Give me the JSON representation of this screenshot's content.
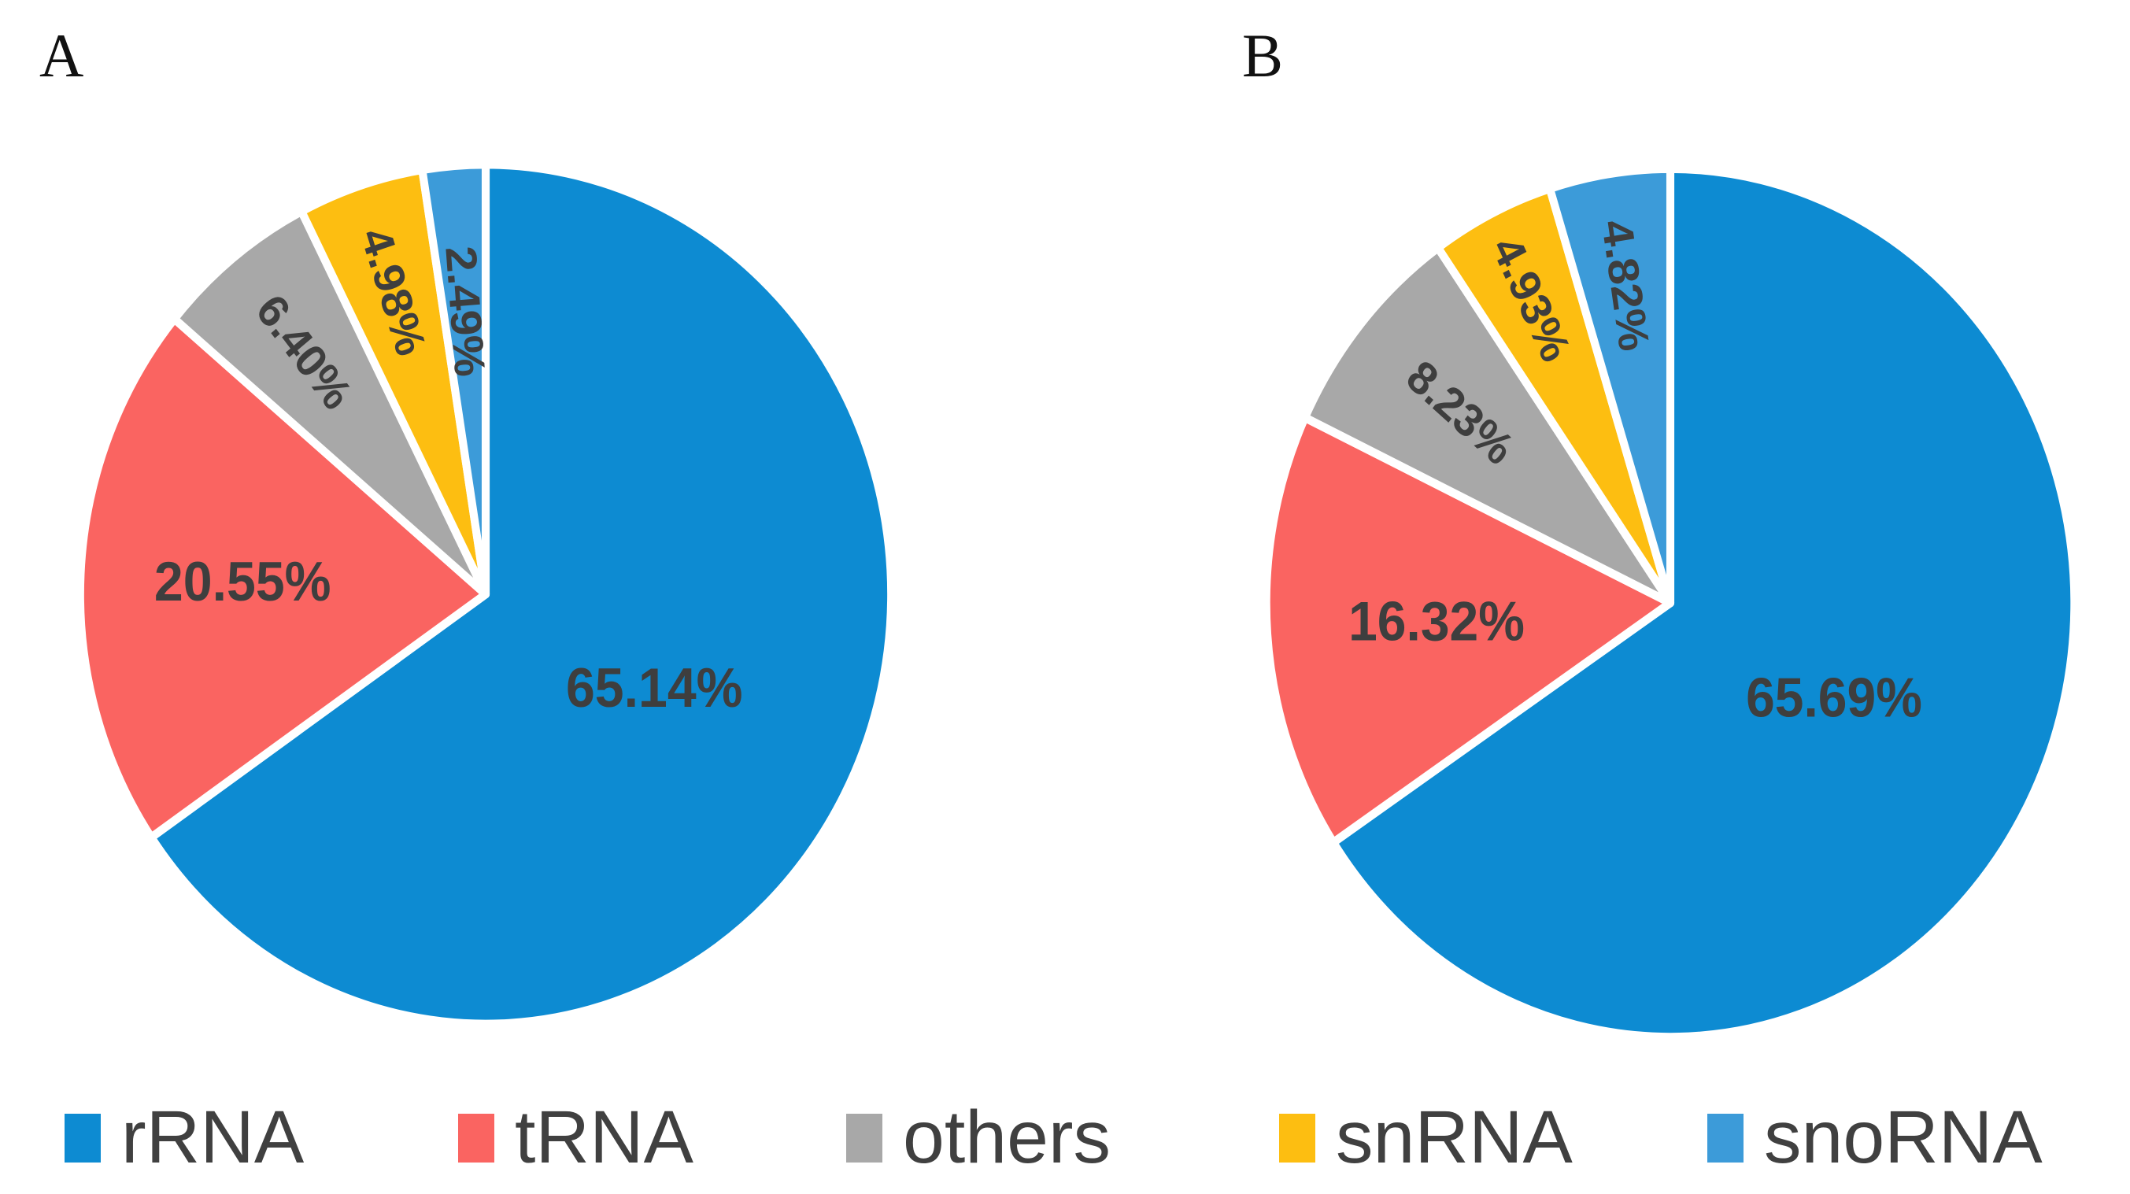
{
  "figure": {
    "panel_a_label": "A",
    "panel_b_label": "B"
  },
  "colors": {
    "rRNA": "#0d8bd2",
    "tRNA": "#fa6461",
    "others": "#a8a8a8",
    "snRNA": "#fdbe11",
    "snoRNA": "#3c9bd9",
    "label_text": "#3e3e3e",
    "legend_text": "#404040",
    "background": "#ffffff"
  },
  "legend": {
    "position": "bottom",
    "items": [
      {
        "label": "rRNA",
        "color": "#0d8bd2"
      },
      {
        "label": "tRNA",
        "color": "#fa6461"
      },
      {
        "label": "others",
        "color": "#a8a8a8"
      },
      {
        "label": "snRNA",
        "color": "#fdbe11"
      },
      {
        "label": "snoRNA",
        "color": "#3c9bd9"
      }
    ]
  },
  "chart_data": [
    {
      "type": "pie",
      "panel": "A",
      "title": "",
      "categories": [
        "rRNA",
        "tRNA",
        "others",
        "snRNA",
        "snoRNA"
      ],
      "values": [
        65.14,
        20.55,
        6.4,
        4.98,
        2.49
      ],
      "labels": [
        "65.14%",
        "20.55%",
        "6.40%",
        "4.98%",
        "2.49%"
      ],
      "colors": [
        "#0d8bd2",
        "#fa6461",
        "#a8a8a8",
        "#fdbe11",
        "#3c9bd9"
      ],
      "start_angle_deg": 0,
      "direction": "clockwise",
      "legend_position": "bottom",
      "label_radius": [
        0.47,
        0.6,
        0.72,
        0.74,
        0.66
      ],
      "label_rotated": [
        false,
        false,
        true,
        true,
        true
      ]
    },
    {
      "type": "pie",
      "panel": "B",
      "title": "",
      "categories": [
        "rRNA",
        "tRNA",
        "others",
        "snRNA",
        "snoRNA"
      ],
      "values": [
        65.69,
        16.32,
        8.23,
        4.93,
        4.82
      ],
      "labels": [
        "65.69%",
        "16.32%",
        "8.23%",
        "4.93%",
        "4.82%"
      ],
      "colors": [
        "#0d8bd2",
        "#fa6461",
        "#a8a8a8",
        "#fdbe11",
        "#3c9bd9"
      ],
      "start_angle_deg": 0,
      "direction": "clockwise",
      "legend_position": "bottom",
      "label_radius": [
        0.46,
        0.58,
        0.68,
        0.78,
        0.74
      ],
      "label_rotated": [
        false,
        false,
        true,
        true,
        true
      ]
    }
  ]
}
